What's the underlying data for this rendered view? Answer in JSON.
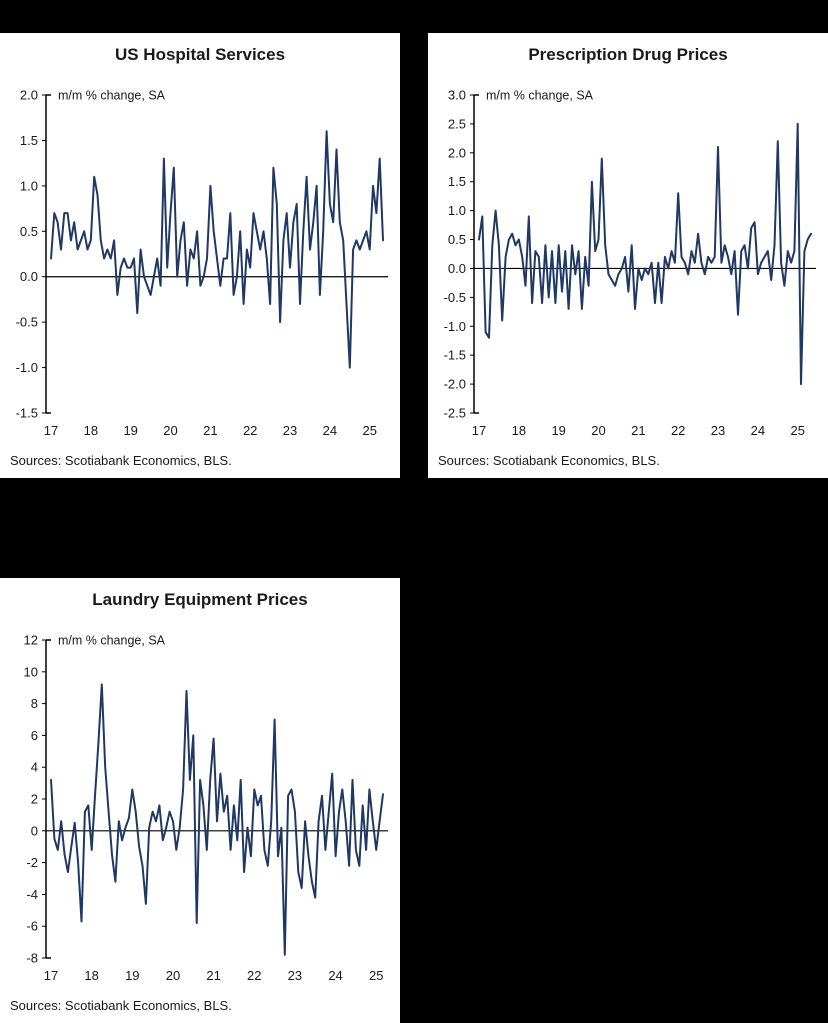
{
  "page": {
    "background": "#000000",
    "panel_background": "#ffffff"
  },
  "chart_data": [
    {
      "type": "line",
      "title": "US Hospital Services",
      "note": "m/m % change, SA",
      "sources": "Sources: Scotiabank Economics, BLS.",
      "line_color": "#1F3864",
      "ylim": [
        -1.5,
        2.0
      ],
      "ytick_step": 0.5,
      "ytick_decimals": 1,
      "x_tick_labels": [
        "17",
        "18",
        "19",
        "20",
        "21",
        "22",
        "23",
        "24",
        "25"
      ],
      "x_start_year": 2017,
      "frequency": "monthly",
      "grid": false,
      "legend": "none",
      "values": [
        0.2,
        0.7,
        0.6,
        0.3,
        0.7,
        0.7,
        0.4,
        0.6,
        0.3,
        0.4,
        0.5,
        0.3,
        0.4,
        1.1,
        0.9,
        0.4,
        0.2,
        0.3,
        0.2,
        0.4,
        -0.2,
        0.1,
        0.2,
        0.1,
        0.1,
        0.2,
        -0.4,
        0.3,
        0.0,
        -0.1,
        -0.2,
        0.0,
        0.2,
        -0.1,
        1.3,
        0.1,
        0.7,
        1.2,
        0.0,
        0.4,
        0.6,
        -0.1,
        0.3,
        0.2,
        0.5,
        -0.1,
        0.0,
        0.2,
        1.0,
        0.5,
        0.2,
        -0.1,
        0.2,
        0.2,
        0.7,
        -0.2,
        0.0,
        0.5,
        -0.3,
        0.3,
        0.1,
        0.7,
        0.5,
        0.3,
        0.5,
        0.2,
        -0.3,
        1.2,
        0.8,
        -0.5,
        0.4,
        0.7,
        0.1,
        0.6,
        0.8,
        -0.3,
        0.5,
        1.1,
        0.3,
        0.6,
        1.0,
        -0.2,
        0.5,
        1.6,
        0.8,
        0.6,
        1.4,
        0.6,
        0.4,
        -0.3,
        -1.0,
        0.3,
        0.4,
        0.3,
        0.4,
        0.5,
        0.3,
        1.0,
        0.7,
        1.3,
        0.4
      ]
    },
    {
      "type": "line",
      "title": "Prescription Drug Prices",
      "note": "m/m % change, SA",
      "sources": "Sources: Scotiabank Economics, BLS.",
      "line_color": "#1F3864",
      "ylim": [
        -2.5,
        3.0
      ],
      "ytick_step": 0.5,
      "ytick_decimals": 1,
      "x_tick_labels": [
        "17",
        "18",
        "19",
        "20",
        "21",
        "22",
        "23",
        "24",
        "25"
      ],
      "x_start_year": 2017,
      "frequency": "monthly",
      "grid": false,
      "legend": "none",
      "values": [
        0.5,
        0.9,
        -1.1,
        -1.2,
        0.4,
        1.0,
        0.4,
        -0.9,
        0.2,
        0.5,
        0.6,
        0.4,
        0.5,
        0.2,
        -0.3,
        0.9,
        -0.6,
        0.3,
        0.2,
        -0.6,
        0.4,
        -0.5,
        0.3,
        -0.6,
        0.4,
        -0.4,
        0.3,
        -0.7,
        0.4,
        -0.1,
        0.3,
        -0.7,
        0.2,
        -0.3,
        1.5,
        0.3,
        0.5,
        1.9,
        0.4,
        -0.1,
        -0.2,
        -0.3,
        -0.1,
        0.0,
        0.2,
        -0.4,
        0.4,
        -0.7,
        0.0,
        -0.2,
        0.0,
        -0.1,
        0.1,
        -0.6,
        0.1,
        -0.6,
        0.2,
        0.0,
        0.3,
        0.1,
        1.3,
        0.2,
        0.1,
        -0.1,
        0.3,
        0.1,
        0.6,
        0.1,
        -0.1,
        0.2,
        0.1,
        0.2,
        2.1,
        0.1,
        0.4,
        0.2,
        -0.1,
        0.3,
        -0.8,
        0.3,
        0.4,
        0.0,
        0.7,
        0.8,
        -0.1,
        0.1,
        0.2,
        0.3,
        -0.2,
        0.4,
        2.2,
        0.1,
        -0.3,
        0.3,
        0.1,
        0.3,
        2.5,
        -2.0,
        0.3,
        0.5,
        0.6
      ]
    },
    {
      "type": "line",
      "title": "Laundry Equipment Prices",
      "note": "m/m % change, SA",
      "sources": "Sources: Scotiabank Economics, BLS.",
      "line_color": "#1F3864",
      "ylim": [
        -8,
        12
      ],
      "ytick_step": 2,
      "ytick_decimals": 0,
      "x_tick_labels": [
        "17",
        "18",
        "19",
        "20",
        "21",
        "22",
        "23",
        "24",
        "25"
      ],
      "x_start_year": 2017,
      "frequency": "monthly",
      "grid": false,
      "legend": "none",
      "values": [
        3.2,
        -0.5,
        -1.2,
        0.6,
        -1.5,
        -2.6,
        -1.0,
        0.5,
        -2.0,
        -5.7,
        1.2,
        1.6,
        -1.2,
        2.2,
        5.5,
        9.2,
        4.0,
        1.2,
        -1.5,
        -3.2,
        0.6,
        -0.6,
        0.2,
        0.8,
        2.6,
        1.2,
        -1.0,
        -2.2,
        -4.6,
        0.2,
        1.2,
        0.6,
        1.6,
        -0.6,
        0.2,
        1.2,
        0.6,
        -1.2,
        0.2,
        2.6,
        8.8,
        3.2,
        6.0,
        -5.8,
        3.2,
        1.6,
        -1.2,
        3.2,
        5.8,
        0.6,
        3.6,
        1.2,
        2.2,
        -1.2,
        1.6,
        -0.6,
        3.2,
        -2.6,
        0.2,
        -1.6,
        2.6,
        1.6,
        2.2,
        -1.2,
        -2.2,
        0.6,
        7.0,
        -1.6,
        0.2,
        -7.8,
        2.2,
        2.6,
        1.2,
        -2.6,
        -3.6,
        0.6,
        -1.6,
        -3.2,
        -4.2,
        0.6,
        2.2,
        -1.2,
        1.2,
        3.6,
        -1.6,
        1.2,
        2.6,
        0.6,
        -2.2,
        3.2,
        -1.2,
        -2.2,
        1.6,
        -1.2,
        2.6,
        0.6,
        -1.2,
        0.6,
        2.3
      ]
    }
  ]
}
